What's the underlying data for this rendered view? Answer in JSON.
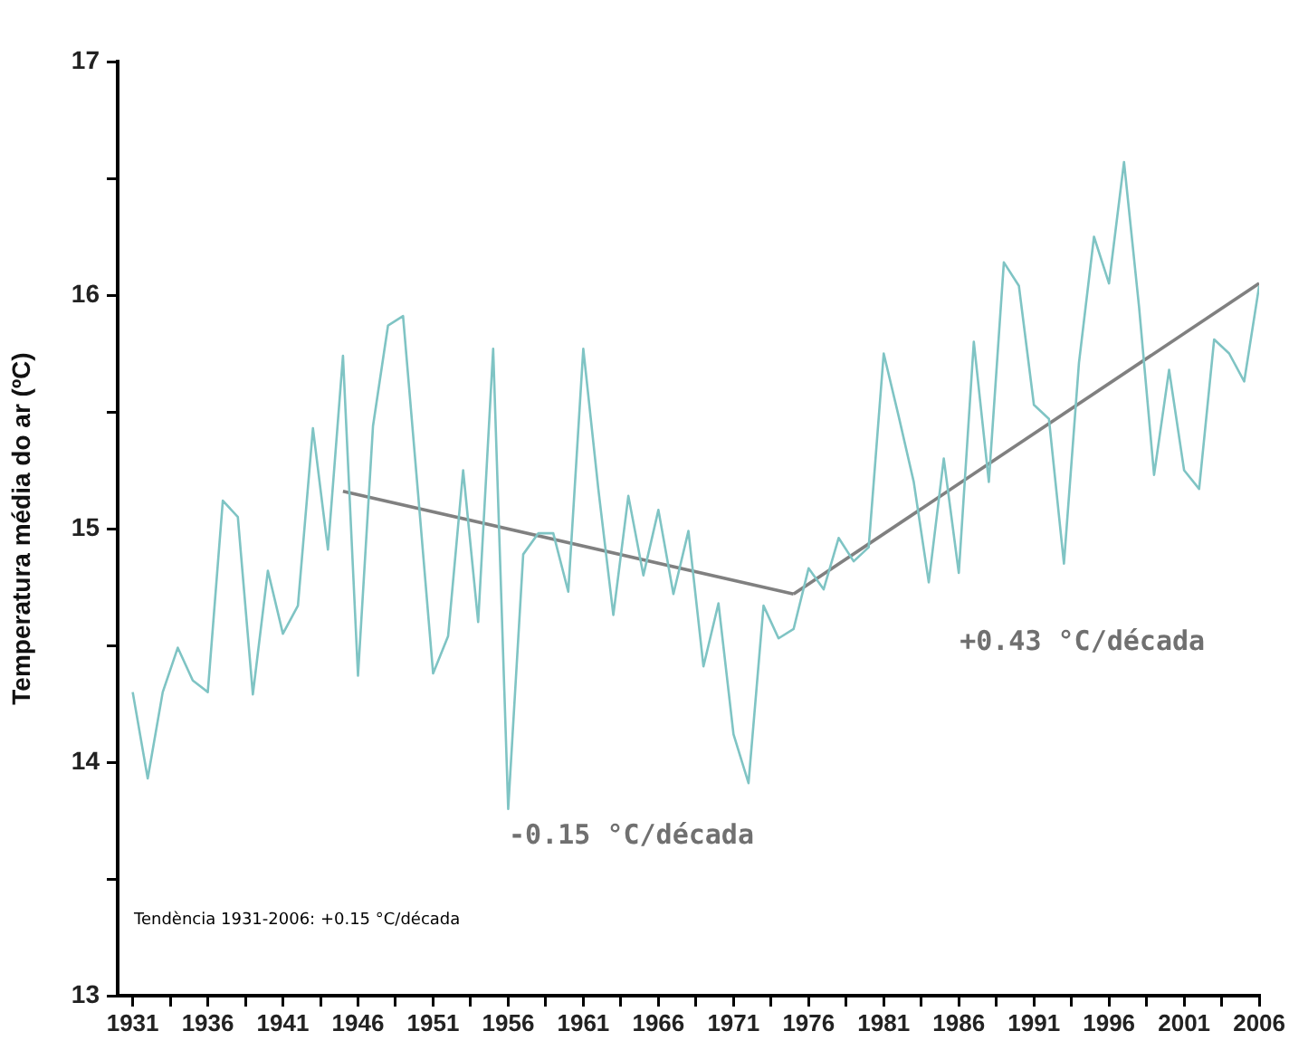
{
  "chart_data": {
    "type": "line",
    "ylabel": "Temperatura média do ar (ºC)",
    "x": [
      1931,
      1932,
      1933,
      1934,
      1935,
      1936,
      1937,
      1938,
      1939,
      1940,
      1941,
      1942,
      1943,
      1944,
      1945,
      1946,
      1947,
      1948,
      1949,
      1950,
      1951,
      1952,
      1953,
      1954,
      1955,
      1956,
      1957,
      1958,
      1959,
      1960,
      1961,
      1962,
      1963,
      1964,
      1965,
      1966,
      1967,
      1968,
      1969,
      1970,
      1971,
      1972,
      1973,
      1974,
      1975,
      1976,
      1977,
      1978,
      1979,
      1980,
      1981,
      1982,
      1983,
      1984,
      1985,
      1986,
      1987,
      1988,
      1989,
      1990,
      1991,
      1992,
      1993,
      1994,
      1995,
      1996,
      1997,
      1998,
      1999,
      2000,
      2001,
      2002,
      2003,
      2004,
      2005,
      2006
    ],
    "series": [
      {
        "color": "#7fc4c4",
        "values": [
          14.3,
          13.93,
          14.3,
          14.49,
          14.35,
          14.3,
          15.12,
          15.05,
          14.29,
          14.82,
          14.55,
          14.67,
          15.43,
          14.91,
          15.74,
          14.37,
          15.44,
          15.87,
          15.91,
          15.15,
          14.38,
          14.54,
          15.25,
          14.6,
          15.77,
          13.8,
          14.89,
          14.98,
          14.98,
          14.73,
          15.77,
          15.17,
          14.63,
          15.14,
          14.8,
          15.08,
          14.72,
          14.99,
          14.41,
          14.68,
          14.12,
          13.91,
          14.67,
          14.53,
          14.57,
          14.83,
          14.74,
          14.96,
          14.86,
          14.92,
          15.75,
          15.48,
          15.2,
          14.77,
          15.3,
          14.81,
          15.8,
          15.2,
          16.14,
          16.04,
          15.53,
          15.47,
          14.85,
          15.71,
          16.25,
          16.05,
          16.57,
          15.95,
          15.23,
          15.68,
          15.25,
          15.17,
          15.81,
          15.75,
          15.63,
          16.04
        ]
      },
      {
        "type": "line",
        "color": "#808080",
        "x": [
          1945,
          1975
        ],
        "values": [
          15.16,
          14.72
        ]
      },
      {
        "type": "line",
        "color": "#808080",
        "x": [
          1975,
          2006
        ],
        "values": [
          14.72,
          16.05
        ]
      }
    ],
    "xlim": [
      1930,
      2006
    ],
    "xticks": [
      1931,
      {
        "value": 1933.5,
        "label": null
      },
      1936,
      {
        "value": 1938.5,
        "label": null
      },
      1941,
      {
        "value": 1943.5,
        "label": null
      },
      1946,
      {
        "value": 1948.5,
        "label": null
      },
      1951,
      {
        "value": 1953.5,
        "label": null
      },
      1956,
      {
        "value": 1958.5,
        "label": null
      },
      1961,
      {
        "value": 1963.5,
        "label": null
      },
      1966,
      {
        "value": 1968.5,
        "label": null
      },
      1971,
      {
        "value": 1973.5,
        "label": null
      },
      1976,
      {
        "value": 1978.5,
        "label": null
      },
      1981,
      {
        "value": 1983.5,
        "label": null
      },
      1986,
      {
        "value": 1988.5,
        "label": null
      },
      1991,
      {
        "value": 1993.5,
        "label": null
      },
      1996,
      {
        "value": 1998.5,
        "label": null
      },
      2001,
      {
        "value": 2003.5,
        "label": null
      },
      2006
    ],
    "ylim": [
      13,
      17
    ],
    "yticks": [
      13,
      {
        "value": 13.5,
        "label": null
      },
      14,
      {
        "value": 14.5,
        "label": null
      },
      15,
      {
        "value": 15.5,
        "label": null
      },
      16,
      {
        "value": 16.5,
        "label": null
      },
      17
    ],
    "annotations": [
      "-0.15 °C/década",
      "+0.43 °C/década",
      "Tendència 1931-2006: +0.15 °C/década"
    ],
    "grid": false,
    "legend": false,
    "marker": "none",
    "line_style": "solid"
  }
}
